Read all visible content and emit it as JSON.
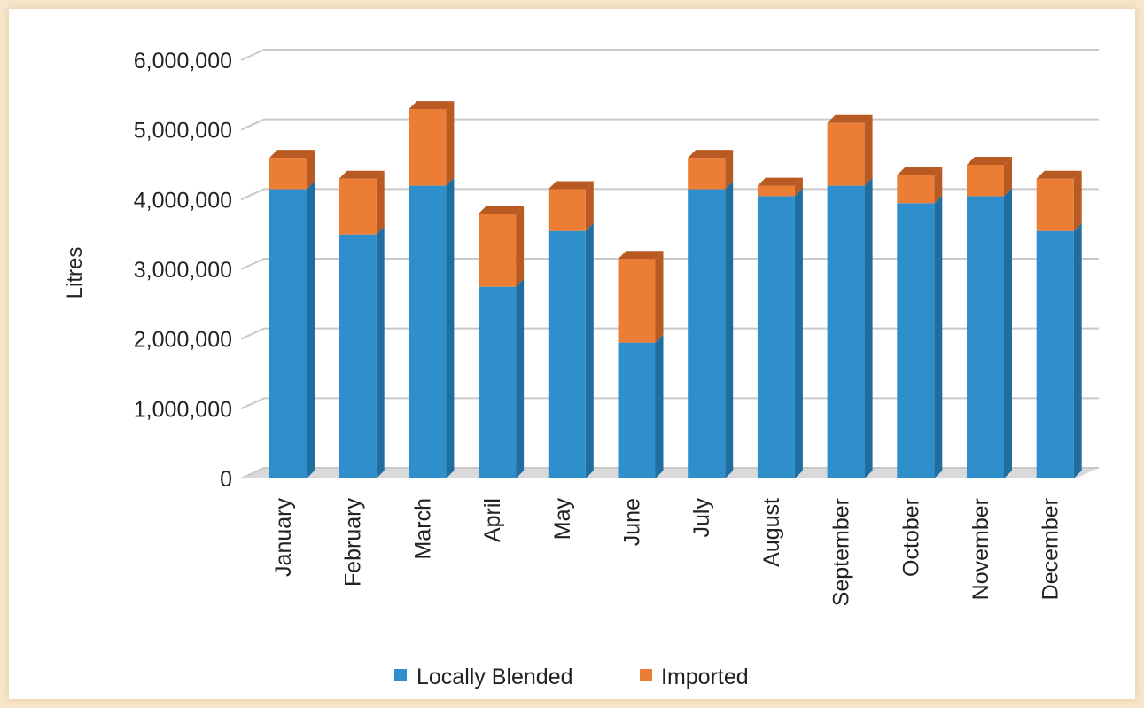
{
  "colors": {
    "local_front": "#2e8fcc",
    "local_side": "#1f6e9f",
    "import_front": "#ec7d35",
    "import_side": "#b95a22",
    "grid": "#c9c9c9"
  },
  "chart_data": {
    "type": "bar",
    "stacked": true,
    "ylabel": "Litres",
    "ylim": [
      0,
      6000000
    ],
    "yticks": [
      "0",
      "1,000,000",
      "2,000,000",
      "3,000,000",
      "4,000,000",
      "5,000,000",
      "6,000,000"
    ],
    "ytick_values": [
      0,
      1000000,
      2000000,
      3000000,
      4000000,
      5000000,
      6000000
    ],
    "grid": true,
    "legend_position": "bottom",
    "categories": [
      "January",
      "February",
      "March",
      "April",
      "May",
      "June",
      "July",
      "August",
      "September",
      "October",
      "November",
      "December"
    ],
    "series": [
      {
        "name": "Locally Blended",
        "color": "#2e8fcc",
        "values": [
          4150000,
          3500000,
          4200000,
          2750000,
          3550000,
          1950000,
          4150000,
          4050000,
          4200000,
          3950000,
          4050000,
          3550000
        ]
      },
      {
        "name": "Imported",
        "color": "#ec7d35",
        "values": [
          450000,
          800000,
          1100000,
          1050000,
          600000,
          1200000,
          450000,
          150000,
          900000,
          400000,
          450000,
          750000
        ]
      }
    ]
  }
}
